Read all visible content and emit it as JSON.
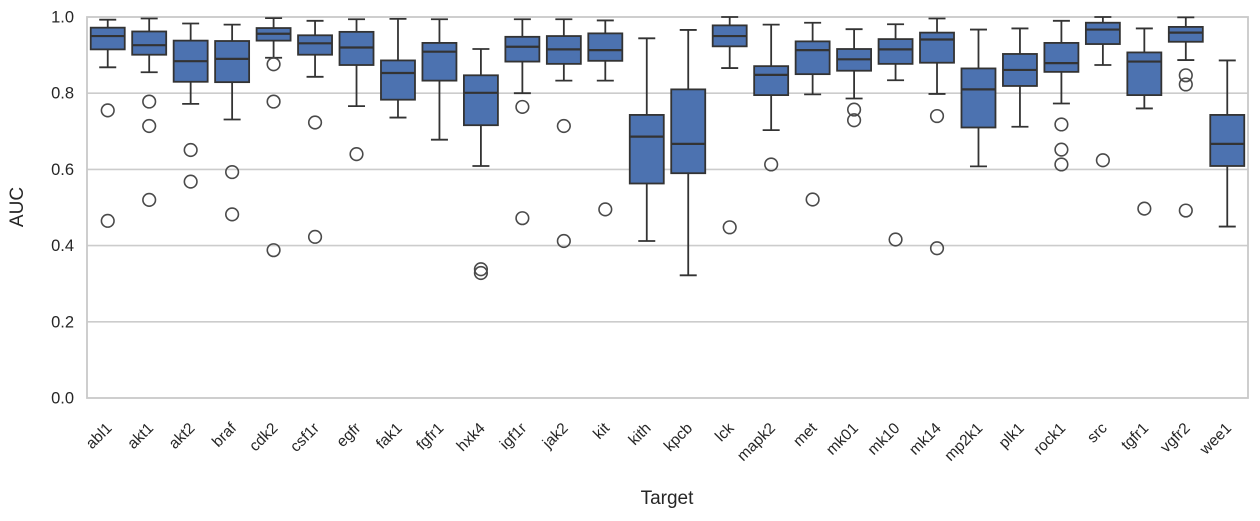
{
  "chart_data": {
    "type": "boxplot",
    "title": "",
    "xlabel": "Target",
    "ylabel": "AUC",
    "ylim": [
      0.0,
      1.0
    ],
    "yticks": [
      0.0,
      0.2,
      0.4,
      0.6,
      0.8,
      1.0
    ],
    "ytick_labels": [
      "0.0",
      "0.2",
      "0.4",
      "0.6",
      "0.8",
      "1.0"
    ],
    "grid": "horizontal",
    "legend": "none",
    "colors": {
      "box_fill": "#4C72B0",
      "box_edge": "#333333",
      "whisker": "#333333",
      "flier_edge": "#4a4a4a",
      "gridline": "#cccccc",
      "frame": "#c9c9c9",
      "text": "#262626",
      "background": "#ffffff"
    },
    "categories": [
      "abl1",
      "akt1",
      "akt2",
      "braf",
      "cdk2",
      "csf1r",
      "egfr",
      "fak1",
      "fgfr1",
      "hxk4",
      "igf1r",
      "jak2",
      "kit",
      "kith",
      "kpcb",
      "lck",
      "mapk2",
      "met",
      "mk01",
      "mk10",
      "mk14",
      "mp2k1",
      "plk1",
      "rock1",
      "src",
      "tgfr1",
      "vgfr2",
      "wee1"
    ],
    "boxes": [
      {
        "label": "abl1",
        "whisker_low": 0.868,
        "q1": 0.915,
        "median": 0.95,
        "q3": 0.972,
        "whisker_high": 0.993,
        "outliers": [
          0.755,
          0.465
        ]
      },
      {
        "label": "akt1",
        "whisker_low": 0.855,
        "q1": 0.901,
        "median": 0.926,
        "q3": 0.962,
        "whisker_high": 0.996,
        "outliers": [
          0.778,
          0.714,
          0.52
        ]
      },
      {
        "label": "akt2",
        "whisker_low": 0.772,
        "q1": 0.83,
        "median": 0.884,
        "q3": 0.938,
        "whisker_high": 0.983,
        "outliers": [
          0.651,
          0.568
        ]
      },
      {
        "label": "braf",
        "whisker_low": 0.731,
        "q1": 0.829,
        "median": 0.89,
        "q3": 0.937,
        "whisker_high": 0.98,
        "outliers": [
          0.593,
          0.482
        ]
      },
      {
        "label": "cdk2",
        "whisker_low": 0.893,
        "q1": 0.938,
        "median": 0.956,
        "q3": 0.971,
        "whisker_high": 0.997,
        "outliers": [
          0.876,
          0.778,
          0.388
        ]
      },
      {
        "label": "csf1r",
        "whisker_low": 0.843,
        "q1": 0.901,
        "median": 0.931,
        "q3": 0.952,
        "whisker_high": 0.99,
        "outliers": [
          0.723,
          0.423
        ]
      },
      {
        "label": "egfr",
        "whisker_low": 0.766,
        "q1": 0.874,
        "median": 0.92,
        "q3": 0.961,
        "whisker_high": 0.994,
        "outliers": [
          0.64
        ]
      },
      {
        "label": "fak1",
        "whisker_low": 0.736,
        "q1": 0.783,
        "median": 0.853,
        "q3": 0.886,
        "whisker_high": 0.995,
        "outliers": []
      },
      {
        "label": "fgfr1",
        "whisker_low": 0.678,
        "q1": 0.833,
        "median": 0.909,
        "q3": 0.932,
        "whisker_high": 0.994,
        "outliers": []
      },
      {
        "label": "hxk4",
        "whisker_low": 0.609,
        "q1": 0.716,
        "median": 0.801,
        "q3": 0.847,
        "whisker_high": 0.916,
        "outliers": [
          0.338,
          0.328
        ]
      },
      {
        "label": "igf1r",
        "whisker_low": 0.8,
        "q1": 0.883,
        "median": 0.922,
        "q3": 0.948,
        "whisker_high": 0.994,
        "outliers": [
          0.764,
          0.472
        ]
      },
      {
        "label": "jak2",
        "whisker_low": 0.833,
        "q1": 0.877,
        "median": 0.915,
        "q3": 0.95,
        "whisker_high": 0.994,
        "outliers": [
          0.714,
          0.412
        ]
      },
      {
        "label": "kit",
        "whisker_low": 0.833,
        "q1": 0.885,
        "median": 0.913,
        "q3": 0.957,
        "whisker_high": 0.991,
        "outliers": [
          0.495
        ]
      },
      {
        "label": "kith",
        "whisker_low": 0.412,
        "q1": 0.563,
        "median": 0.686,
        "q3": 0.743,
        "whisker_high": 0.944,
        "outliers": []
      },
      {
        "label": "kpcb",
        "whisker_low": 0.322,
        "q1": 0.59,
        "median": 0.667,
        "q3": 0.81,
        "whisker_high": 0.966,
        "outliers": []
      },
      {
        "label": "lck",
        "whisker_low": 0.866,
        "q1": 0.923,
        "median": 0.95,
        "q3": 0.978,
        "whisker_high": 1.0,
        "outliers": [
          0.448
        ]
      },
      {
        "label": "mapk2",
        "whisker_low": 0.703,
        "q1": 0.795,
        "median": 0.848,
        "q3": 0.871,
        "whisker_high": 0.98,
        "outliers": [
          0.613
        ]
      },
      {
        "label": "met",
        "whisker_low": 0.797,
        "q1": 0.85,
        "median": 0.913,
        "q3": 0.936,
        "whisker_high": 0.985,
        "outliers": [
          0.521
        ]
      },
      {
        "label": "mk01",
        "whisker_low": 0.786,
        "q1": 0.859,
        "median": 0.889,
        "q3": 0.916,
        "whisker_high": 0.968,
        "outliers": [
          0.757,
          0.729
        ]
      },
      {
        "label": "mk10",
        "whisker_low": 0.834,
        "q1": 0.877,
        "median": 0.915,
        "q3": 0.942,
        "whisker_high": 0.981,
        "outliers": [
          0.416
        ]
      },
      {
        "label": "mk14",
        "whisker_low": 0.798,
        "q1": 0.88,
        "median": 0.941,
        "q3": 0.959,
        "whisker_high": 0.996,
        "outliers": [
          0.74,
          0.393
        ]
      },
      {
        "label": "mp2k1",
        "whisker_low": 0.608,
        "q1": 0.71,
        "median": 0.81,
        "q3": 0.865,
        "whisker_high": 0.967,
        "outliers": []
      },
      {
        "label": "plk1",
        "whisker_low": 0.712,
        "q1": 0.819,
        "median": 0.861,
        "q3": 0.903,
        "whisker_high": 0.97,
        "outliers": []
      },
      {
        "label": "rock1",
        "whisker_low": 0.773,
        "q1": 0.856,
        "median": 0.879,
        "q3": 0.932,
        "whisker_high": 0.99,
        "outliers": [
          0.718,
          0.652,
          0.613
        ]
      },
      {
        "label": "src",
        "whisker_low": 0.874,
        "q1": 0.929,
        "median": 0.967,
        "q3": 0.985,
        "whisker_high": 1.0,
        "outliers": [
          0.624
        ]
      },
      {
        "label": "tgfr1",
        "whisker_low": 0.76,
        "q1": 0.795,
        "median": 0.883,
        "q3": 0.907,
        "whisker_high": 0.97,
        "outliers": [
          0.497
        ]
      },
      {
        "label": "vgfr2",
        "whisker_low": 0.887,
        "q1": 0.935,
        "median": 0.959,
        "q3": 0.974,
        "whisker_high": 0.999,
        "outliers": [
          0.847,
          0.823,
          0.492
        ]
      },
      {
        "label": "wee1",
        "whisker_low": 0.45,
        "q1": 0.609,
        "median": 0.667,
        "q3": 0.743,
        "whisker_high": 0.886,
        "outliers": []
      }
    ]
  }
}
